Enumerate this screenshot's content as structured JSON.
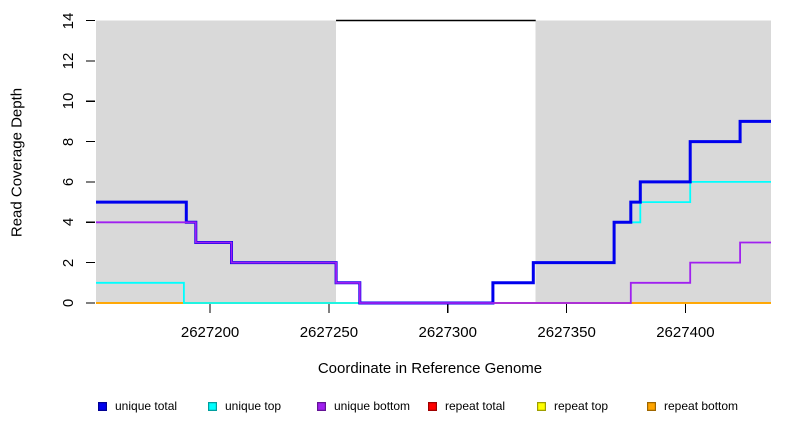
{
  "figure": {
    "background": "#FFFFFF",
    "shade_color": "#D9D9D9",
    "axis_color": "#000000"
  },
  "chart_data": {
    "type": "line",
    "subtype": "step",
    "title": "",
    "xlabel": "Coordinate in Reference Genome",
    "ylabel": "Read Coverage Depth",
    "xlim": [
      2627152,
      2627436
    ],
    "ylim": [
      0,
      14
    ],
    "x_ticks": [
      2627200,
      2627250,
      2627300,
      2627350,
      2627400
    ],
    "y_ticks": [
      0,
      2,
      4,
      6,
      8,
      10,
      12,
      14
    ],
    "grid": false,
    "shaded_regions": [
      {
        "label": "left-coverage-region",
        "x0": 2627152,
        "x1": 2627253,
        "color": "#D9D9D9"
      },
      {
        "label": "right-coverage-region",
        "x0": 2627337,
        "x1": 2627436,
        "color": "#D9D9D9"
      }
    ],
    "gap_marker": {
      "x0": 2627253,
      "x1": 2627337,
      "y": 14,
      "color": "#000000"
    },
    "series": [
      {
        "name": "repeat total",
        "color": "#FF0000",
        "width": 1.6,
        "points": [
          [
            2627152,
            0
          ],
          [
            2627436,
            0
          ]
        ]
      },
      {
        "name": "repeat top",
        "color": "#FFFF00",
        "width": 1.6,
        "points": [
          [
            2627152,
            0
          ],
          [
            2627436,
            0
          ]
        ]
      },
      {
        "name": "repeat bottom",
        "color": "#FFA500",
        "width": 1.8,
        "points": [
          [
            2627152,
            0
          ],
          [
            2627436,
            0
          ]
        ]
      },
      {
        "name": "unique top",
        "color": "#00FFFF",
        "width": 1.8,
        "points": [
          [
            2627152,
            1
          ],
          [
            2627189,
            0
          ],
          [
            2627319,
            1
          ],
          [
            2627336,
            2
          ],
          [
            2627370,
            4
          ],
          [
            2627381,
            5
          ],
          [
            2627402,
            6
          ],
          [
            2627436,
            6
          ]
        ]
      },
      {
        "name": "unique total",
        "color": "#0000EE",
        "width": 3,
        "points": [
          [
            2627152,
            5
          ],
          [
            2627190,
            4
          ],
          [
            2627194,
            3
          ],
          [
            2627209,
            2
          ],
          [
            2627253,
            1
          ],
          [
            2627263,
            0
          ],
          [
            2627319,
            1
          ],
          [
            2627336,
            2
          ],
          [
            2627370,
            4
          ],
          [
            2627377,
            5
          ],
          [
            2627381,
            6
          ],
          [
            2627402,
            8
          ],
          [
            2627423,
            9
          ],
          [
            2627436,
            9
          ]
        ]
      },
      {
        "name": "unique bottom",
        "color": "#A020F0",
        "width": 1.8,
        "points": [
          [
            2627152,
            4
          ],
          [
            2627194,
            3
          ],
          [
            2627209,
            2
          ],
          [
            2627253,
            1
          ],
          [
            2627263,
            0
          ],
          [
            2627377,
            1
          ],
          [
            2627402,
            2
          ],
          [
            2627423,
            3
          ],
          [
            2627436,
            3
          ]
        ]
      }
    ],
    "legend": {
      "position": "bottom",
      "entries": [
        {
          "label": "unique total",
          "color": "#0000EE"
        },
        {
          "label": "unique top",
          "color": "#00FFFF"
        },
        {
          "label": "unique bottom",
          "color": "#A020F0"
        },
        {
          "label": "repeat total",
          "color": "#FF0000"
        },
        {
          "label": "repeat top",
          "color": "#FFFF00"
        },
        {
          "label": "repeat bottom",
          "color": "#FFA500"
        }
      ]
    }
  }
}
